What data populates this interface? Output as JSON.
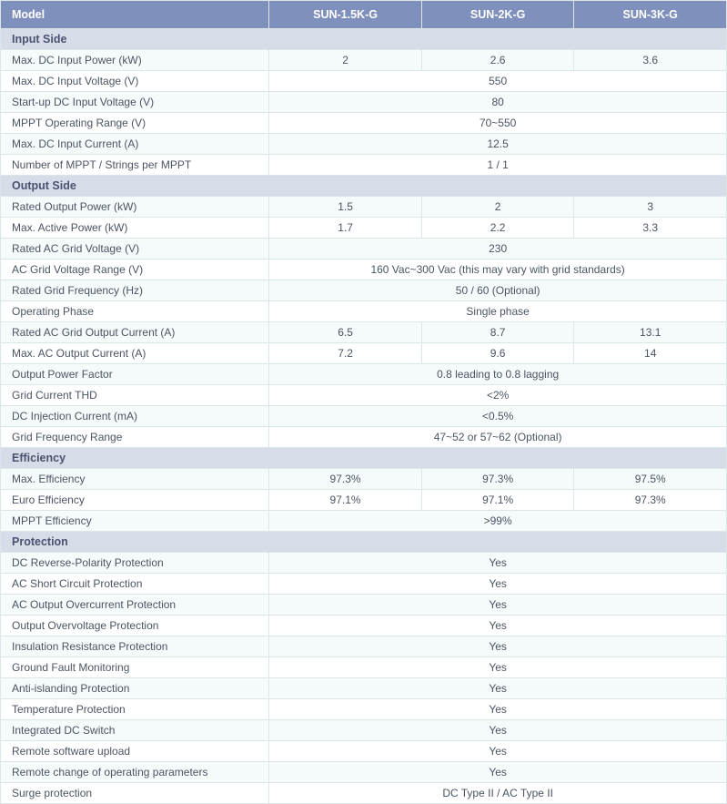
{
  "colors": {
    "header_bg": "#8090bc",
    "header_text": "#ffffff",
    "section_bg": "#d7dce9",
    "section_text": "#49536f",
    "row_odd_bg": "#f5fafa",
    "row_even_bg": "#ffffff",
    "border": "#dbe6e9",
    "body_text": "#4b5563"
  },
  "header": {
    "model_label": "Model",
    "models": [
      "SUN-1.5K-G",
      "SUN-2K-G",
      "SUN-3K-G"
    ]
  },
  "sections": [
    {
      "title": "Input Side",
      "rows": [
        {
          "label": "Max. DC Input Power (kW)",
          "values": [
            "2",
            "2.6",
            "3.6"
          ],
          "span": false
        },
        {
          "label": "Max. DC Input Voltage (V)",
          "values": [
            "550"
          ],
          "span": true
        },
        {
          "label": "Start-up DC Input Voltage (V)",
          "values": [
            "80"
          ],
          "span": true
        },
        {
          "label": "MPPT  Operating Range (V)",
          "values": [
            "70~550"
          ],
          "span": true
        },
        {
          "label": "Max. DC Input Current (A)",
          "values": [
            "12.5"
          ],
          "span": true
        },
        {
          "label": "Number of MPPT / Strings per MPPT",
          "values": [
            "1 / 1"
          ],
          "span": true
        }
      ]
    },
    {
      "title": "Output Side",
      "rows": [
        {
          "label": "Rated Output Power (kW)",
          "values": [
            "1.5",
            "2",
            "3"
          ],
          "span": false
        },
        {
          "label": "Max. Active Power (kW)",
          "values": [
            "1.7",
            "2.2",
            "3.3"
          ],
          "span": false
        },
        {
          "label": "Rated AC Grid Voltage (V)",
          "values": [
            "230"
          ],
          "span": true
        },
        {
          "label": "AC Grid Voltage Range (V)",
          "values": [
            "160 Vac~300 Vac (this may vary with grid standards)"
          ],
          "span": true
        },
        {
          "label": "Rated Grid Frequency (Hz)",
          "values": [
            "50 / 60 (Optional)"
          ],
          "span": true
        },
        {
          "label": "Operating Phase",
          "values": [
            "Single phase"
          ],
          "span": true
        },
        {
          "label": "Rated AC Grid Output Current (A)",
          "values": [
            "6.5",
            "8.7",
            "13.1"
          ],
          "span": false
        },
        {
          "label": "Max. AC Output Current (A)",
          "values": [
            "7.2",
            "9.6",
            "14"
          ],
          "span": false
        },
        {
          "label": "Output Power Factor",
          "values": [
            "0.8 leading to 0.8 lagging"
          ],
          "span": true
        },
        {
          "label": "Grid Current THD",
          "values": [
            "<2%"
          ],
          "span": true
        },
        {
          "label": "DC Injection Current (mA)",
          "values": [
            "<0.5%"
          ],
          "span": true
        },
        {
          "label": "Grid Frequency Range",
          "values": [
            "47~52 or 57~62 (Optional)"
          ],
          "span": true
        }
      ]
    },
    {
      "title": "Efficiency",
      "rows": [
        {
          "label": "Max. Efficiency",
          "values": [
            "97.3%",
            "97.3%",
            "97.5%"
          ],
          "span": false
        },
        {
          "label": "Euro Efficiency",
          "values": [
            "97.1%",
            "97.1%",
            "97.3%"
          ],
          "span": false
        },
        {
          "label": "MPPT Efficiency",
          "values": [
            ">99%"
          ],
          "span": true
        }
      ]
    },
    {
      "title": "Protection",
      "rows": [
        {
          "label": "DC Reverse-Polarity Protection",
          "values": [
            "Yes"
          ],
          "span": true
        },
        {
          "label": "AC Short Circuit Protection",
          "values": [
            "Yes"
          ],
          "span": true
        },
        {
          "label": "AC Output Overcurrent Protection",
          "values": [
            "Yes"
          ],
          "span": true
        },
        {
          "label": "Output Overvoltage Protection",
          "values": [
            "Yes"
          ],
          "span": true
        },
        {
          "label": "Insulation Resistance Protection",
          "values": [
            "Yes"
          ],
          "span": true
        },
        {
          "label": "Ground Fault Monitoring",
          "values": [
            "Yes"
          ],
          "span": true
        },
        {
          "label": "Anti-islanding Protection",
          "values": [
            "Yes"
          ],
          "span": true
        },
        {
          "label": "Temperature Protection",
          "values": [
            "Yes"
          ],
          "span": true
        },
        {
          "label": "Integrated DC Switch",
          "values": [
            "Yes"
          ],
          "span": true
        },
        {
          "label": "Remote software upload",
          "values": [
            "Yes"
          ],
          "span": true
        },
        {
          "label": "Remote change of operating parameters",
          "values": [
            "Yes"
          ],
          "span": true
        },
        {
          "label": "Surge protection",
          "values": [
            "DC Type II / AC Type II"
          ],
          "span": true
        }
      ]
    }
  ]
}
